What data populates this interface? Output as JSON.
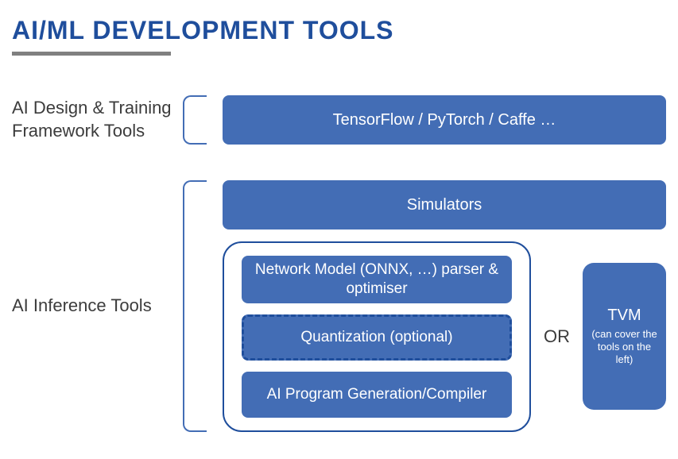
{
  "title": "AI/ML DEVELOPMENT TOOLS",
  "colors": {
    "title_color": "#1F4E9C",
    "underline_color": "#808080",
    "label_color": "#3C3C3C",
    "box_fill": "#436DB5",
    "box_text": "#ffffff",
    "bracket_border": "#436DB5",
    "pipeline_border": "#1F4E9C",
    "dashed_border": "#1F4E9C",
    "background": "#ffffff"
  },
  "typography": {
    "title_fontsize": 32,
    "label_fontsize": 22,
    "box_fontsize": 20,
    "pipeline_fontsize": 19,
    "tvm_title_fontsize": 20,
    "tvm_sub_fontsize": 13
  },
  "section1": {
    "label": "AI Design & Training Framework Tools",
    "box": "TensorFlow / PyTorch / Caffe …"
  },
  "section2": {
    "label": "AI Inference Tools",
    "simulators": "Simulators",
    "pipeline": {
      "parser": "Network Model (ONNX, …) parser & optimiser",
      "quantization": "Quantization (optional)",
      "compiler": "AI Program Generation/Compiler"
    },
    "or": "OR",
    "tvm": {
      "title": "TVM",
      "subtitle": "(can cover the tools on the left)"
    }
  }
}
